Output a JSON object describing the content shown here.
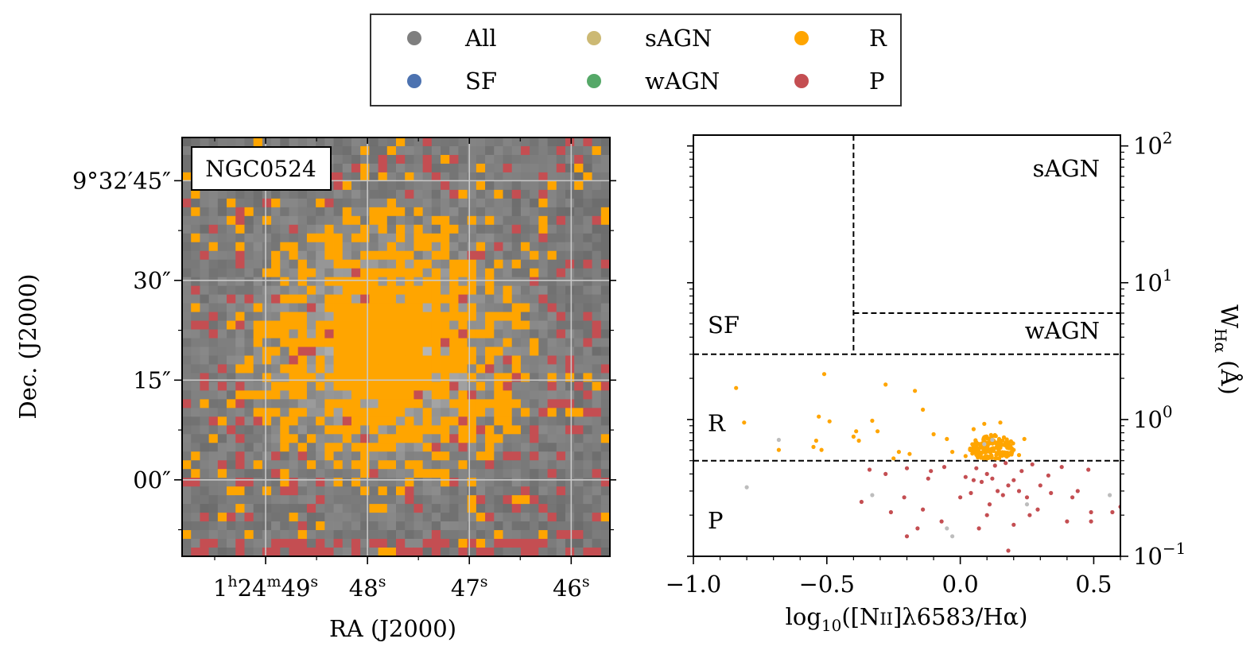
{
  "chart_data": [
    {
      "type": "heatmap",
      "title": "",
      "object_label": "NGC0524",
      "xlabel": "RA (J2000)",
      "ylabel": "Dec. (J2000)",
      "x_ticks": [
        {
          "h": "1",
          "m": "24",
          "s": "49",
          "value": 49
        },
        {
          "s": "48",
          "value": 48
        },
        {
          "s": "47",
          "value": 47
        },
        {
          "s": "46",
          "value": 46
        }
      ],
      "x_range": [
        49.82,
        45.62
      ],
      "y_ticks": [
        {
          "deg": "9",
          "amin": "32",
          "asec": "45",
          "value": 45,
          "label": "9°32′45″"
        },
        {
          "asec": "30",
          "value": 30,
          "label": "30″"
        },
        {
          "asec": "15",
          "value": 15,
          "label": "15″"
        },
        {
          "asec": "00",
          "value": 0,
          "label": "00″"
        }
      ],
      "y_range": [
        -11.5,
        51.5
      ],
      "grid": true,
      "grid_cells": 48,
      "center_offset_arcsec": [
        -1.2,
        -0.3
      ],
      "core_radius_arcsec": 8,
      "coverage_radius_arcsec": 22
    },
    {
      "type": "scatter",
      "xlabel": "log10([NII]λ6583/Hα)",
      "xlabel_parts": {
        "pre": "log",
        "sub": "10",
        "mid": "([N",
        "sc": "II",
        "post": "]λ6583/Hα)"
      },
      "ylabel": "W_Hα (Å)",
      "ylabel_parts": {
        "pre": "W",
        "sub": "Hα",
        "post": " (Å)"
      },
      "xlim": [
        -1.0,
        0.6
      ],
      "ylim": [
        0.1,
        120
      ],
      "yscale": "log",
      "x_ticks": [
        {
          "value": -1.0,
          "label": "−1.0"
        },
        {
          "value": -0.5,
          "label": "−0.5"
        },
        {
          "value": 0.0,
          "label": "0.0"
        },
        {
          "value": 0.5,
          "label": "0.5"
        }
      ],
      "y_ticks": [
        {
          "value": 100,
          "base": "10",
          "exp": "2"
        },
        {
          "value": 10,
          "base": "10",
          "exp": "1"
        },
        {
          "value": 1,
          "base": "10",
          "exp": "0"
        },
        {
          "value": 0.1,
          "base": "10",
          "exp": "−1"
        }
      ],
      "boundaries": {
        "vertical_x": -0.4,
        "wha_split": 3,
        "sagn_wagn_split": 6,
        "r_p_split": 0.5
      },
      "region_labels": [
        "sAGN",
        "wAGN",
        "SF",
        "R",
        "P"
      ],
      "cluster": {
        "center": [
          0.12,
          0.62
        ],
        "n": 160
      },
      "series": [
        {
          "name": "R",
          "color": "#FFA500",
          "points": [
            [
              -0.84,
              1.7
            ],
            [
              -0.81,
              0.95
            ],
            [
              -0.51,
              2.15
            ],
            [
              -0.53,
              1.05
            ],
            [
              -0.49,
              0.97
            ],
            [
              -0.28,
              1.8
            ],
            [
              -0.17,
              1.62
            ],
            [
              -0.14,
              1.18
            ],
            [
              -0.33,
              0.98
            ],
            [
              -0.4,
              0.75
            ],
            [
              -0.38,
              0.7
            ],
            [
              -0.54,
              0.7
            ],
            [
              -0.55,
              0.63
            ],
            [
              -0.52,
              0.6
            ],
            [
              -0.68,
              0.6
            ],
            [
              -0.39,
              0.82
            ],
            [
              -0.31,
              0.82
            ],
            [
              -0.1,
              0.78
            ],
            [
              -0.05,
              0.72
            ],
            [
              -0.23,
              0.58
            ],
            [
              -0.19,
              0.56
            ],
            [
              -0.03,
              0.58
            ],
            [
              -0.25,
              0.52
            ],
            [
              0.02,
              0.54
            ],
            [
              0.2,
              0.6
            ],
            [
              0.24,
              0.72
            ],
            [
              0.22,
              0.55
            ],
            [
              0.05,
              0.85
            ],
            [
              0.15,
              0.95
            ],
            [
              0.09,
              0.93
            ]
          ]
        },
        {
          "name": "P",
          "color": "#C44E52",
          "points": [
            [
              -0.34,
              0.43
            ],
            [
              -0.28,
              0.4
            ],
            [
              -0.2,
              0.44
            ],
            [
              -0.11,
              0.42
            ],
            [
              -0.06,
              0.45
            ],
            [
              0.02,
              0.38
            ],
            [
              0.05,
              0.36
            ],
            [
              0.08,
              0.35
            ],
            [
              0.1,
              0.4
            ],
            [
              0.12,
              0.37
            ],
            [
              0.14,
              0.3
            ],
            [
              0.16,
              0.28
            ],
            [
              0.18,
              0.33
            ],
            [
              0.2,
              0.36
            ],
            [
              0.22,
              0.3
            ],
            [
              0.25,
              0.27
            ],
            [
              0.3,
              0.33
            ],
            [
              0.34,
              0.29
            ],
            [
              0.42,
              0.27
            ],
            [
              0.44,
              0.3
            ],
            [
              0.49,
              0.21
            ],
            [
              0.49,
              0.18
            ],
            [
              0.6,
              0.23
            ],
            [
              0.57,
              0.21
            ],
            [
              0.4,
              0.18
            ],
            [
              0.26,
              0.2
            ],
            [
              0.29,
              0.22
            ],
            [
              0.1,
              0.2
            ],
            [
              0.07,
              0.16
            ],
            [
              0.11,
              0.24
            ],
            [
              0.0,
              0.27
            ],
            [
              0.04,
              0.29
            ],
            [
              -0.21,
              0.27
            ],
            [
              -0.26,
              0.21
            ],
            [
              -0.37,
              0.25
            ],
            [
              -0.14,
              0.22
            ],
            [
              -0.16,
              0.16
            ],
            [
              -0.2,
              0.14
            ],
            [
              -0.07,
              0.18
            ],
            [
              0.2,
              0.17
            ],
            [
              0.18,
              0.11
            ],
            [
              0.38,
              0.45
            ],
            [
              0.48,
              0.43
            ],
            [
              0.27,
              0.47
            ],
            [
              0.13,
              0.46
            ],
            [
              -0.12,
              0.37
            ],
            [
              0.06,
              0.44
            ],
            [
              0.17,
              0.48
            ],
            [
              0.23,
              0.42
            ],
            [
              0.33,
              0.39
            ]
          ]
        },
        {
          "name": "All",
          "color": "#BDBDBD",
          "points": [
            [
              -0.68,
              0.71
            ],
            [
              -0.8,
              0.32
            ],
            [
              -0.33,
              0.28
            ],
            [
              -0.05,
              0.16
            ],
            [
              -0.03,
              0.14
            ],
            [
              0.25,
              0.24
            ],
            [
              0.56,
              0.28
            ],
            [
              0.12,
              0.71
            ],
            [
              0.09,
              0.66
            ]
          ]
        }
      ],
      "legend": {
        "placement": "top-center",
        "entries": [
          {
            "label": "All",
            "color": "#7F7F7F"
          },
          {
            "label": "sAGN",
            "color": "#CCB974"
          },
          {
            "label": "R",
            "color": "#FFA500"
          },
          {
            "label": "SF",
            "color": "#4C72B0"
          },
          {
            "label": "wAGN",
            "color": "#55A868"
          },
          {
            "label": "P",
            "color": "#C44E52"
          }
        ]
      }
    }
  ]
}
